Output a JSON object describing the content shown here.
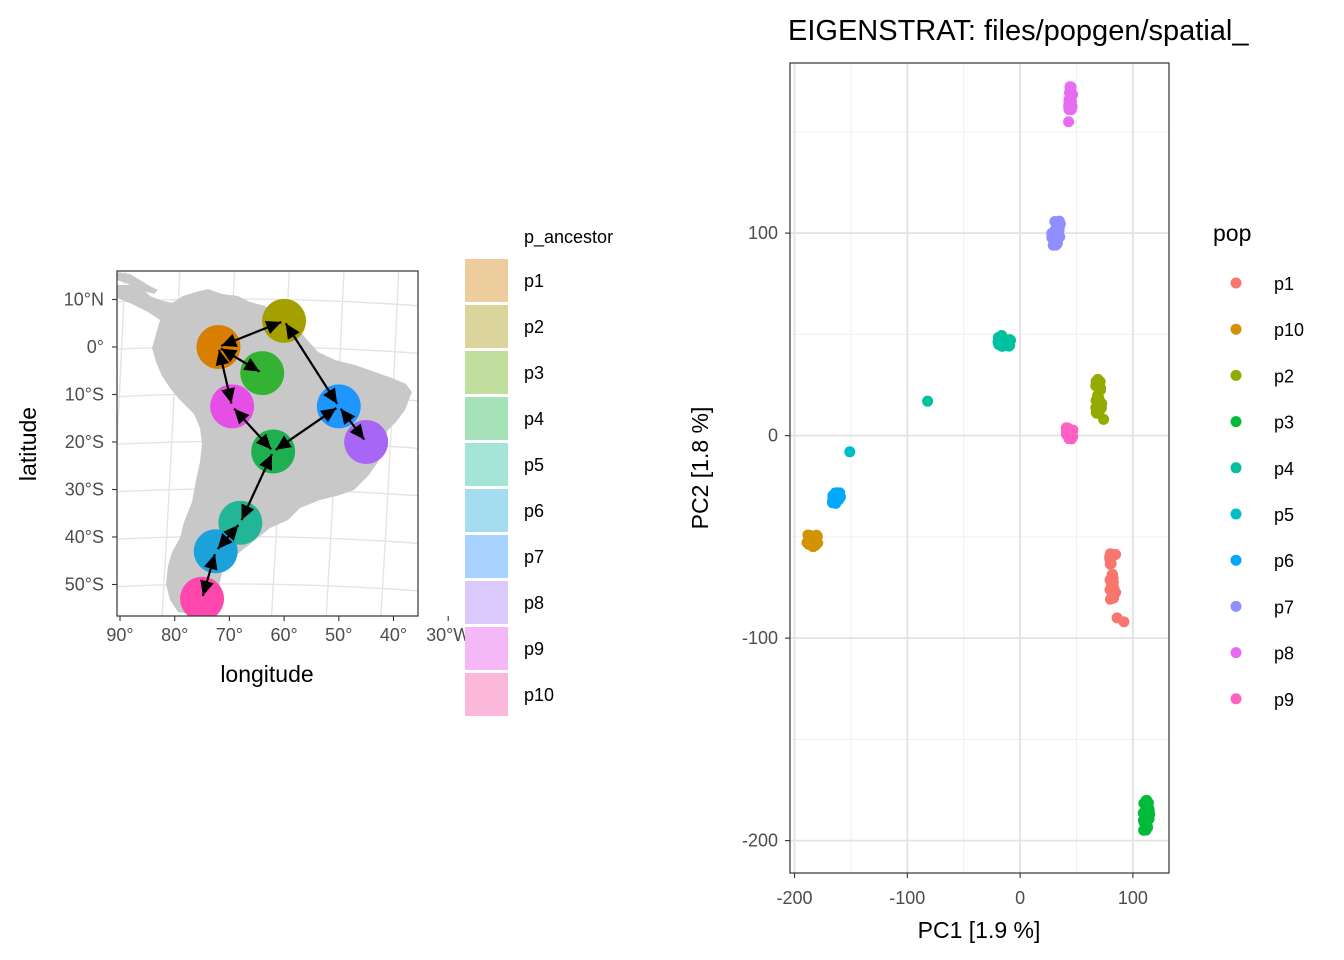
{
  "chart_data": [
    {
      "type": "scatter",
      "subtype": "map",
      "xlabel": "longitude",
      "ylabel": "latitude",
      "x_ticks": [
        "90°W",
        "80°W",
        "70°W",
        "60°W",
        "50°W",
        "40°W",
        "30°W"
      ],
      "x_tick_labels": [
        "90°",
        "80°",
        "70°",
        "60°",
        "50°",
        "40°",
        "30°W"
      ],
      "x_tick_values": [
        -90,
        -80,
        -70,
        -60,
        -50,
        -40,
        -30
      ],
      "y_tick_labels": [
        "10°N",
        "0°",
        "10°S",
        "20°S",
        "30°S",
        "40°S",
        "50°S"
      ],
      "y_tick_values": [
        10,
        0,
        -10,
        -20,
        -30,
        -40,
        -50
      ],
      "xlim": [
        -91,
        -43
      ],
      "ylim": [
        -57,
        15
      ],
      "land_color": "#c8c8c8",
      "legend": {
        "title": "p_ancestor",
        "entries": [
          "p1",
          "p2",
          "p3",
          "p4",
          "p5",
          "p6",
          "p7",
          "p8",
          "p9",
          "p10"
        ],
        "alpha": 0.4,
        "placement": "right"
      },
      "populations": [
        {
          "name": "p10",
          "lon": -72.0,
          "lat": 0.0,
          "color": "#D39200"
        },
        {
          "name": "p2",
          "lon": -60.0,
          "lat": 5.5,
          "color": "#93AA00"
        },
        {
          "name": "p3",
          "lon": -64.0,
          "lat": -5.5,
          "color": "#00BA38"
        },
        {
          "name": "p9",
          "lon": -69.5,
          "lat": -12.5,
          "color": "#F8766D",
          "note": "magenta fill"
        },
        {
          "name": "p6",
          "lon": -50.0,
          "lat": -12.5,
          "color": "#00A5FF"
        },
        {
          "name": "p8",
          "lon": -45.0,
          "lat": -20.0,
          "color": "#E76BF3"
        },
        {
          "name": "p4",
          "lon": -62.0,
          "lat": -22.0,
          "color": "#00C19F"
        },
        {
          "name": "p5",
          "lon": -68.0,
          "lat": -37.0,
          "color": "#00B9E3"
        },
        {
          "name": "p7",
          "lon": -72.5,
          "lat": -43.0,
          "color": "#619CFF"
        },
        {
          "name": "p1",
          "lon": -75.0,
          "lat": -53.0,
          "color": "#FF61C3"
        }
      ],
      "arrows": [
        [
          "p10",
          "p2"
        ],
        [
          "p10",
          "p3"
        ],
        [
          "p10",
          "p9"
        ],
        [
          "p2",
          "p6"
        ],
        [
          "p6",
          "p8"
        ],
        [
          "p6",
          "p4"
        ],
        [
          "p9",
          "p4"
        ],
        [
          "p4",
          "p5"
        ],
        [
          "p5",
          "p7"
        ],
        [
          "p7",
          "p1"
        ]
      ]
    },
    {
      "type": "scatter",
      "title": "EIGENSTRAT: files/popgen/spatial_",
      "xlabel": "PC1 [1.9 %]",
      "ylabel": "PC2 [1.8 %]",
      "xlim": [
        -204,
        132
      ],
      "ylim": [
        -216,
        184
      ],
      "x_ticks": [
        -200,
        -100,
        0,
        100
      ],
      "y_ticks": [
        -200,
        -100,
        0,
        100
      ],
      "grid": true,
      "legend": {
        "title": "pop",
        "placement": "right"
      },
      "series": [
        {
          "name": "p1",
          "color": "#F8766D",
          "center": [
            82,
            -70
          ],
          "spread": [
            3,
            12
          ],
          "n": 25,
          "extra": [
            [
              86,
              -90
            ],
            [
              92,
              -92
            ]
          ]
        },
        {
          "name": "p10",
          "color": "#D39200",
          "center": [
            -184,
            -52
          ],
          "spread": [
            5,
            3
          ],
          "n": 25,
          "extra": []
        },
        {
          "name": "p2",
          "color": "#93AA00",
          "center": [
            70,
            20
          ],
          "spread": [
            3,
            9
          ],
          "n": 25,
          "extra": [
            [
              74,
              8
            ]
          ]
        },
        {
          "name": "p3",
          "color": "#00BA38",
          "center": [
            112,
            -188
          ],
          "spread": [
            3,
            8
          ],
          "n": 25,
          "extra": []
        },
        {
          "name": "p4",
          "color": "#00C19F",
          "center": [
            -14,
            47
          ],
          "spread": [
            6,
            3
          ],
          "n": 25,
          "extra": [
            [
              -82,
              17
            ]
          ]
        },
        {
          "name": "p5",
          "color": "#00BFC4",
          "center": [
            -151,
            -8
          ],
          "spread": [
            0,
            0
          ],
          "n": 1,
          "extra": []
        },
        {
          "name": "p6",
          "color": "#00A9FF",
          "center": [
            -163,
            -31
          ],
          "spread": [
            4,
            3
          ],
          "n": 25,
          "extra": []
        },
        {
          "name": "p7",
          "color": "#8F8FFF",
          "center": [
            32,
            100
          ],
          "spread": [
            4,
            6
          ],
          "n": 25,
          "extra": []
        },
        {
          "name": "p8",
          "color": "#E76BF3",
          "center": [
            45,
            166
          ],
          "spread": [
            2,
            7
          ],
          "n": 25,
          "extra": [
            [
              43,
              155
            ]
          ]
        },
        {
          "name": "p9",
          "color": "#FF61C3",
          "center": [
            44,
            1
          ],
          "spread": [
            3,
            3
          ],
          "n": 25,
          "extra": []
        }
      ]
    }
  ]
}
